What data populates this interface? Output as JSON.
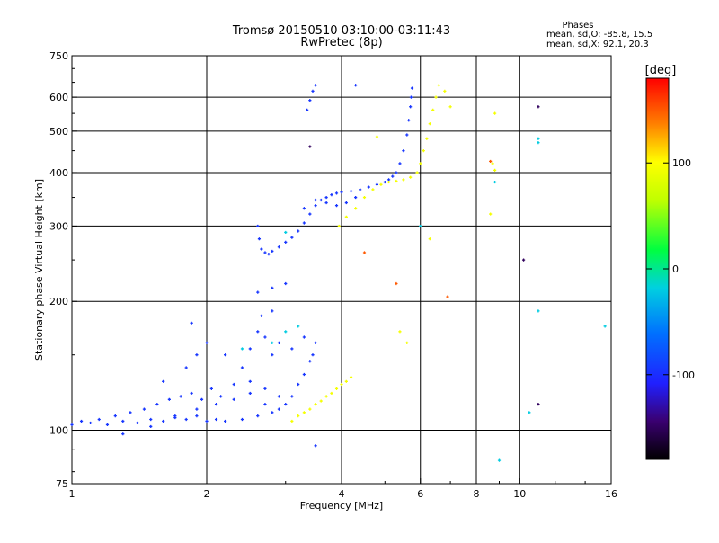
{
  "chart_data": {
    "type": "scatter",
    "title": "Tromsø 20150510 03:10:00-03:11:43",
    "subtitle": "RwPretec (8p)",
    "xlabel": "Frequency [MHz]",
    "ylabel": "Stationary phase Virtual Height [km]",
    "x_scale": "log",
    "y_scale": "log",
    "xlim": [
      1,
      16
    ],
    "ylim": [
      75,
      750
    ],
    "x_ticks": [
      1,
      2,
      4,
      6,
      8,
      10,
      16
    ],
    "y_ticks": [
      75,
      100,
      200,
      300,
      400,
      500,
      600,
      750
    ],
    "x_grid_lines": [
      2,
      4,
      6,
      8,
      10
    ],
    "y_grid_lines": [
      100,
      200,
      300,
      400,
      500,
      600
    ],
    "phase_stats": {
      "title": "Phases",
      "o_line": "mean, sd,O: -85.8, 15.5",
      "x_line": "mean, sd,X:  92.1, 20.3"
    },
    "colorbar": {
      "label": "[deg]",
      "range": [
        -180,
        180
      ],
      "ticks": [
        -100,
        0,
        100
      ]
    },
    "series": [
      {
        "mode": "O",
        "phase_deg": -95,
        "points": [
          [
            1.0,
            103
          ],
          [
            1.05,
            105
          ],
          [
            1.1,
            104
          ],
          [
            1.15,
            106
          ],
          [
            1.2,
            103
          ],
          [
            1.25,
            108
          ],
          [
            1.3,
            105
          ],
          [
            1.35,
            110
          ],
          [
            1.4,
            104
          ],
          [
            1.45,
            112
          ],
          [
            1.5,
            106
          ],
          [
            1.55,
            115
          ],
          [
            1.6,
            105
          ],
          [
            1.65,
            118
          ],
          [
            1.7,
            107
          ],
          [
            1.75,
            120
          ],
          [
            1.8,
            106
          ],
          [
            1.85,
            122
          ],
          [
            1.9,
            108
          ],
          [
            1.95,
            118
          ],
          [
            2.0,
            105
          ],
          [
            2.05,
            125
          ],
          [
            2.1,
            106
          ],
          [
            2.15,
            120
          ],
          [
            2.2,
            105
          ],
          [
            2.3,
            128
          ],
          [
            2.4,
            106
          ],
          [
            2.5,
            130
          ],
          [
            2.6,
            108
          ],
          [
            2.7,
            115
          ],
          [
            2.8,
            110
          ],
          [
            2.9,
            112
          ],
          [
            3.0,
            115
          ],
          [
            3.1,
            120
          ],
          [
            3.2,
            128
          ],
          [
            3.3,
            135
          ],
          [
            3.4,
            145
          ],
          [
            3.45,
            150
          ],
          [
            1.3,
            98
          ],
          [
            1.5,
            102
          ],
          [
            1.7,
            108
          ],
          [
            1.9,
            112
          ],
          [
            2.1,
            115
          ],
          [
            2.3,
            118
          ],
          [
            2.5,
            122
          ],
          [
            2.7,
            125
          ],
          [
            2.9,
            120
          ],
          [
            1.6,
            130
          ],
          [
            1.8,
            140
          ],
          [
            1.9,
            150
          ],
          [
            2.0,
            160
          ],
          [
            2.2,
            150
          ],
          [
            2.4,
            140
          ],
          [
            2.5,
            155
          ],
          [
            2.6,
            170
          ],
          [
            2.7,
            165
          ],
          [
            2.8,
            150
          ],
          [
            2.9,
            160
          ],
          [
            3.1,
            155
          ],
          [
            3.3,
            165
          ],
          [
            3.5,
            160
          ],
          [
            1.85,
            178
          ],
          [
            2.65,
            185
          ],
          [
            2.8,
            190
          ],
          [
            2.6,
            300
          ],
          [
            2.62,
            280
          ],
          [
            2.65,
            265
          ],
          [
            2.7,
            260
          ],
          [
            2.75,
            258
          ],
          [
            2.8,
            262
          ],
          [
            2.9,
            268
          ],
          [
            3.0,
            275
          ],
          [
            3.1,
            282
          ],
          [
            3.2,
            292
          ],
          [
            3.3,
            305
          ],
          [
            3.4,
            320
          ],
          [
            3.5,
            335
          ],
          [
            3.6,
            345
          ],
          [
            3.7,
            350
          ],
          [
            3.8,
            355
          ],
          [
            3.9,
            358
          ],
          [
            4.0,
            360
          ],
          [
            4.2,
            362
          ],
          [
            4.4,
            365
          ],
          [
            4.6,
            370
          ],
          [
            4.8,
            375
          ],
          [
            5.0,
            380
          ],
          [
            5.1,
            385
          ],
          [
            5.2,
            392
          ],
          [
            5.3,
            400
          ],
          [
            5.4,
            420
          ],
          [
            5.5,
            450
          ],
          [
            5.6,
            490
          ],
          [
            5.65,
            530
          ],
          [
            5.7,
            570
          ],
          [
            5.72,
            600
          ],
          [
            5.75,
            630
          ],
          [
            3.3,
            330
          ],
          [
            3.5,
            345
          ],
          [
            3.7,
            340
          ],
          [
            3.9,
            335
          ],
          [
            4.1,
            340
          ],
          [
            4.3,
            350
          ],
          [
            3.35,
            560
          ],
          [
            3.4,
            590
          ],
          [
            3.45,
            620
          ],
          [
            3.5,
            640
          ],
          [
            2.6,
            210
          ],
          [
            2.8,
            215
          ],
          [
            3.0,
            220
          ],
          [
            4.3,
            640
          ],
          [
            3.5,
            92
          ]
        ]
      },
      {
        "mode": "X",
        "phase_deg": 95,
        "points": [
          [
            3.1,
            105
          ],
          [
            3.2,
            108
          ],
          [
            3.3,
            110
          ],
          [
            3.4,
            112
          ],
          [
            3.5,
            115
          ],
          [
            3.6,
            117
          ],
          [
            3.7,
            120
          ],
          [
            3.8,
            122
          ],
          [
            3.9,
            125
          ],
          [
            4.0,
            128
          ],
          [
            4.1,
            130
          ],
          [
            4.2,
            133
          ],
          [
            3.95,
            300
          ],
          [
            4.1,
            315
          ],
          [
            4.3,
            330
          ],
          [
            4.5,
            350
          ],
          [
            4.7,
            365
          ],
          [
            4.9,
            375
          ],
          [
            5.1,
            380
          ],
          [
            5.3,
            382
          ],
          [
            5.5,
            385
          ],
          [
            5.7,
            390
          ],
          [
            5.9,
            400
          ],
          [
            6.0,
            420
          ],
          [
            6.1,
            450
          ],
          [
            6.2,
            480
          ],
          [
            6.3,
            520
          ],
          [
            6.4,
            560
          ],
          [
            6.5,
            600
          ],
          [
            6.6,
            640
          ],
          [
            6.8,
            620
          ],
          [
            4.8,
            485
          ],
          [
            5.4,
            170
          ],
          [
            5.6,
            160
          ],
          [
            7.0,
            570
          ],
          [
            8.8,
            550
          ],
          [
            8.7,
            420
          ],
          [
            8.8,
            405
          ],
          [
            8.6,
            320
          ],
          [
            6.3,
            280
          ]
        ]
      },
      {
        "mode": "scatter",
        "phase_deg": -20,
        "points": [
          [
            2.8,
            160
          ],
          [
            3.0,
            170
          ],
          [
            3.2,
            175
          ],
          [
            2.4,
            155
          ],
          [
            6.0,
            300
          ],
          [
            8.8,
            380
          ],
          [
            11.0,
            480
          ],
          [
            11.0,
            470
          ],
          [
            11.0,
            190
          ],
          [
            15.5,
            175
          ],
          [
            9.0,
            85
          ],
          [
            10.5,
            110
          ],
          [
            3.0,
            290
          ]
        ]
      },
      {
        "mode": "scatter",
        "phase_deg": 150,
        "points": [
          [
            4.5,
            260
          ],
          [
            5.3,
            220
          ],
          [
            8.6,
            425
          ],
          [
            6.9,
            205
          ]
        ]
      },
      {
        "mode": "scatter",
        "phase_deg": -150,
        "points": [
          [
            11.0,
            570
          ],
          [
            10.2,
            250
          ],
          [
            3.4,
            460
          ],
          [
            11.0,
            115
          ]
        ]
      }
    ]
  }
}
